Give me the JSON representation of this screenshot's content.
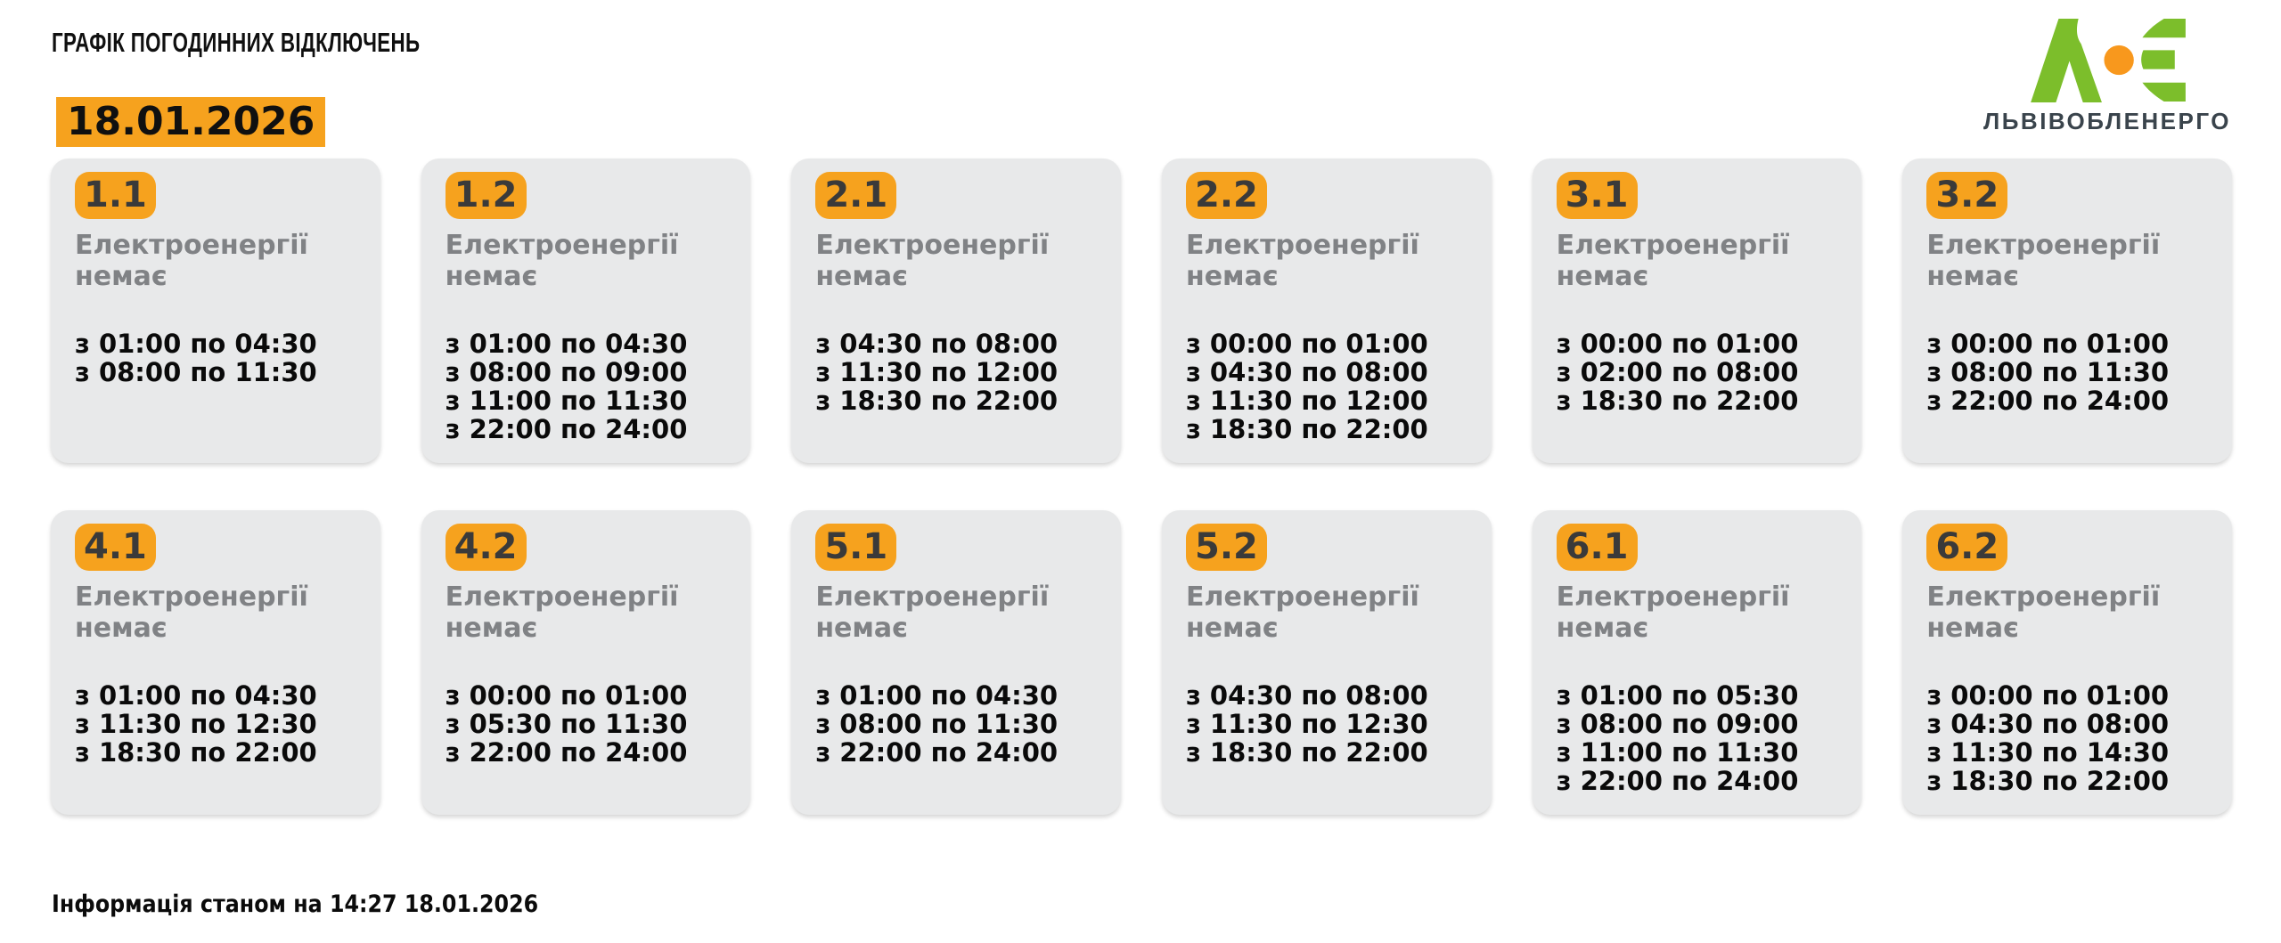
{
  "header": {
    "title": "ГРАФІК ПОГОДИННИХ ВІДКЛЮЧЕНЬ",
    "date": "18.01.2026"
  },
  "logo": {
    "company": "ЛЬВІВОБЛЕНЕРГО",
    "mark_icon": "loe-logo-icon"
  },
  "labels": {
    "no_power": "Електроенергії немає"
  },
  "footer": {
    "status_text": "Інформація станом на 14:27 18.01.2026"
  },
  "colors": {
    "accent_orange": "#F6A21E",
    "logo_green": "#7CBE2B",
    "logo_orange": "#F8981D",
    "card_bg": "#E8E9EA",
    "muted_text": "#808285"
  },
  "cards": [
    {
      "group": "1.1",
      "outages": [
        "з 01:00 по 04:30",
        "з 08:00 по 11:30"
      ]
    },
    {
      "group": "1.2",
      "outages": [
        "з 01:00 по 04:30",
        "з 08:00 по 09:00",
        "з 11:00 по 11:30",
        "з 22:00 по 24:00"
      ]
    },
    {
      "group": "2.1",
      "outages": [
        "з 04:30 по 08:00",
        "з 11:30 по 12:00",
        "з 18:30 по 22:00"
      ]
    },
    {
      "group": "2.2",
      "outages": [
        "з 00:00 по 01:00",
        "з 04:30 по 08:00",
        "з 11:30 по 12:00",
        "з 18:30 по 22:00"
      ]
    },
    {
      "group": "3.1",
      "outages": [
        "з 00:00 по 01:00",
        "з 02:00 по 08:00",
        "з 18:30 по 22:00"
      ]
    },
    {
      "group": "3.2",
      "outages": [
        "з 00:00 по 01:00",
        "з 08:00 по 11:30",
        "з 22:00 по 24:00"
      ]
    },
    {
      "group": "4.1",
      "outages": [
        "з 01:00 по 04:30",
        "з 11:30 по 12:30",
        "з 18:30 по 22:00"
      ]
    },
    {
      "group": "4.2",
      "outages": [
        "з 00:00 по 01:00",
        "з 05:30 по 11:30",
        "з 22:00 по 24:00"
      ]
    },
    {
      "group": "5.1",
      "outages": [
        "з 01:00 по 04:30",
        "з 08:00 по 11:30",
        "з 22:00 по 24:00"
      ]
    },
    {
      "group": "5.2",
      "outages": [
        "з 04:30 по 08:00",
        "з 11:30 по 12:30",
        "з 18:30 по 22:00"
      ]
    },
    {
      "group": "6.1",
      "outages": [
        "з 01:00 по 05:30",
        "з 08:00 по 09:00",
        "з 11:00 по 11:30",
        "з 22:00 по 24:00"
      ]
    },
    {
      "group": "6.2",
      "outages": [
        "з 00:00 по 01:00",
        "з 04:30 по 08:00",
        "з 11:30 по 14:30",
        "з 18:30 по 22:00"
      ]
    }
  ]
}
